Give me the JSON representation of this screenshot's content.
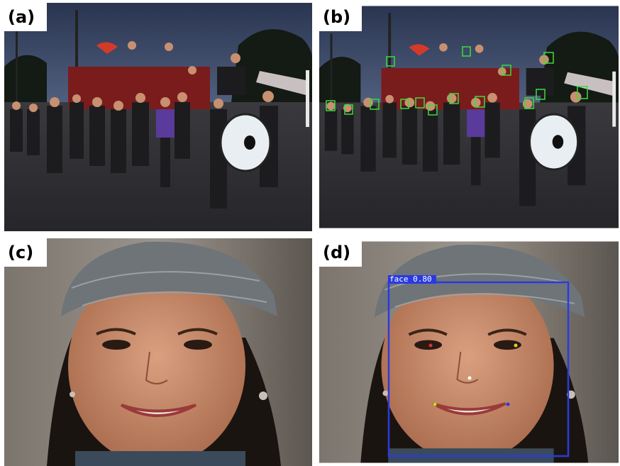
{
  "panels": [
    {
      "label": "(a)"
    },
    {
      "label": "(b)"
    },
    {
      "label": "(c)"
    },
    {
      "label": "(d)"
    }
  ],
  "detection": {
    "label": "face 0.80"
  }
}
